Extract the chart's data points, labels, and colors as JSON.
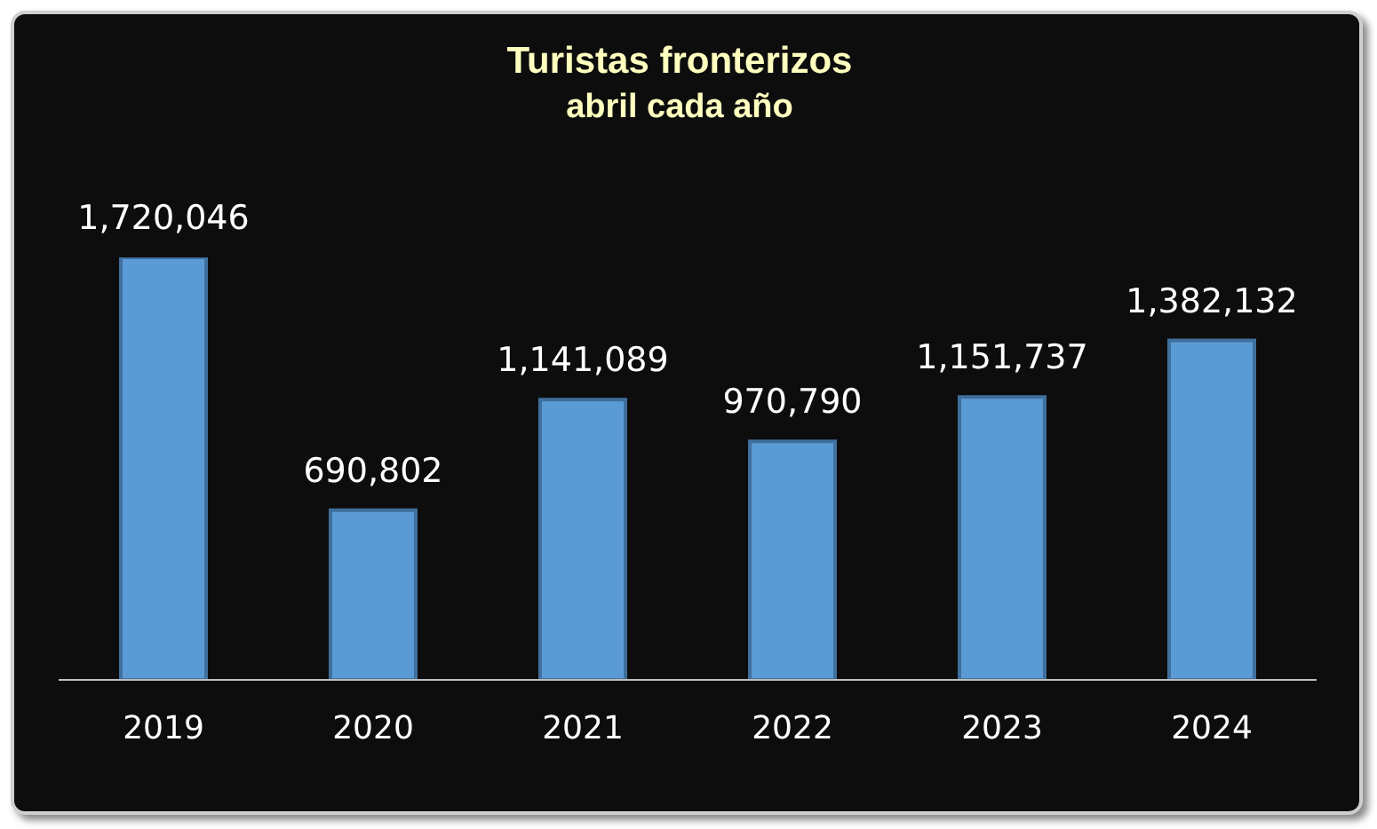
{
  "chart_data": {
    "type": "bar",
    "title": "Turistas fronterizos",
    "subtitle": "abril cada año",
    "categories": [
      "2019",
      "2020",
      "2021",
      "2022",
      "2023",
      "2024"
    ],
    "values": [
      1720046,
      690802,
      1141089,
      970790,
      1151737,
      1382132
    ],
    "value_labels": [
      "1,720,046",
      "690,802",
      "1,141,089",
      "970,790",
      "1,151,737",
      "1,382,132"
    ],
    "color": "#5b9bd5"
  }
}
